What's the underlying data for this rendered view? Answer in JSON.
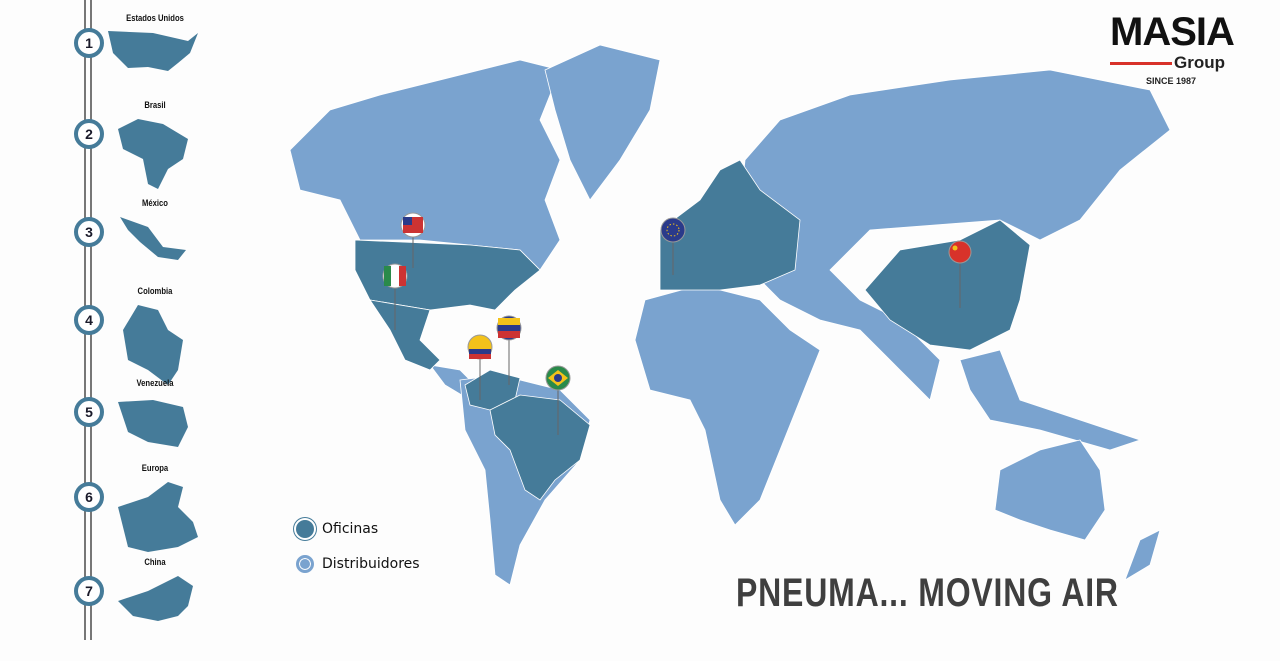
{
  "logo": {
    "name": "MASIA",
    "sub": "Group",
    "since": "SINCE 1987"
  },
  "colors": {
    "offices": "#457b99",
    "distributors": "#7aa3cf",
    "accent": "#d8322a"
  },
  "steps": [
    {
      "n": "1",
      "label": "Estados Unidos"
    },
    {
      "n": "2",
      "label": "Brasil"
    },
    {
      "n": "3",
      "label": "México"
    },
    {
      "n": "4",
      "label": "Colombia"
    },
    {
      "n": "5",
      "label": "Venezuela"
    },
    {
      "n": "6",
      "label": "Europa"
    },
    {
      "n": "7",
      "label": "China"
    }
  ],
  "legend": {
    "offices": "Oficinas",
    "distributors": "Distribuidores"
  },
  "tagline": "PNEUMA... MOVING AIR",
  "pins": [
    "usa-flag",
    "mexico-flag",
    "venezuela-flag",
    "colombia-flag",
    "brazil-flag",
    "eu-flag",
    "china-flag"
  ]
}
